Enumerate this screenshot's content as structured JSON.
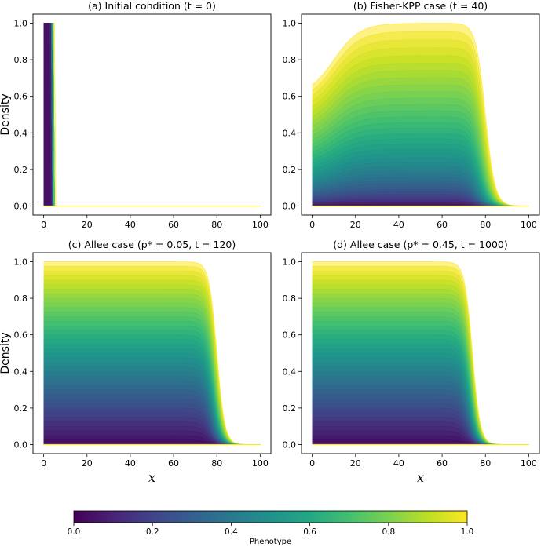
{
  "colorbar": {
    "label": "Phenotype",
    "ticks": [
      "0.0",
      "0.2",
      "0.4",
      "0.6",
      "0.8",
      "1.0"
    ],
    "colormap": "viridis",
    "range": [
      0,
      1
    ]
  },
  "chart_data": [
    {
      "type": "area",
      "title": "(a) Initial condition (t = 0)",
      "xlabel": "",
      "ylabel": "Density",
      "xlim": [
        0,
        100
      ],
      "ylim": [
        0,
        1
      ],
      "xticks": [
        "0",
        "20",
        "40",
        "60",
        "80",
        "100"
      ],
      "yticks": [
        "0.0",
        "0.2",
        "0.4",
        "0.6",
        "0.8",
        "1.0"
      ],
      "profile": {
        "kind": "step",
        "front_position": [
          3,
          5
        ],
        "max_density": 1.0
      },
      "n_phenotype_curves": 40
    },
    {
      "type": "area",
      "title": "(b) Fisher-KPP case (t = 40)",
      "xlabel": "",
      "ylabel": "",
      "xlim": [
        0,
        100
      ],
      "ylim": [
        0,
        1
      ],
      "xticks": [
        "0",
        "20",
        "40",
        "60",
        "80",
        "100"
      ],
      "yticks": [
        "0.0",
        "0.2",
        "0.4",
        "0.6",
        "0.8",
        "1.0"
      ],
      "profile": {
        "kind": "front_with_dip",
        "front_position": [
          72,
          80
        ],
        "max_density": 1.0
      },
      "n_phenotype_curves": 40
    },
    {
      "type": "area",
      "title": "(c) Allee case (p* = 0.05, t = 120)",
      "xlabel": "x",
      "ylabel": "Density",
      "xlim": [
        0,
        100
      ],
      "ylim": [
        0,
        1
      ],
      "xticks": [
        "0",
        "20",
        "40",
        "60",
        "80",
        "100"
      ],
      "yticks": [
        "0.0",
        "0.2",
        "0.4",
        "0.6",
        "0.8",
        "1.0"
      ],
      "profile": {
        "kind": "front",
        "front_position": [
          75,
          80
        ],
        "max_density": 1.0
      },
      "n_phenotype_curves": 40
    },
    {
      "type": "area",
      "title": "(d) Allee case (p* = 0.45, t = 1000)",
      "xlabel": "x",
      "ylabel": "",
      "xlim": [
        0,
        100
      ],
      "ylim": [
        0,
        1
      ],
      "xticks": [
        "0",
        "20",
        "40",
        "60",
        "80",
        "100"
      ],
      "yticks": [
        "0.0",
        "0.2",
        "0.4",
        "0.6",
        "0.8",
        "1.0"
      ],
      "profile": {
        "kind": "front",
        "front_position": [
          70,
          74
        ],
        "max_density": 1.0
      },
      "n_phenotype_curves": 40
    }
  ]
}
